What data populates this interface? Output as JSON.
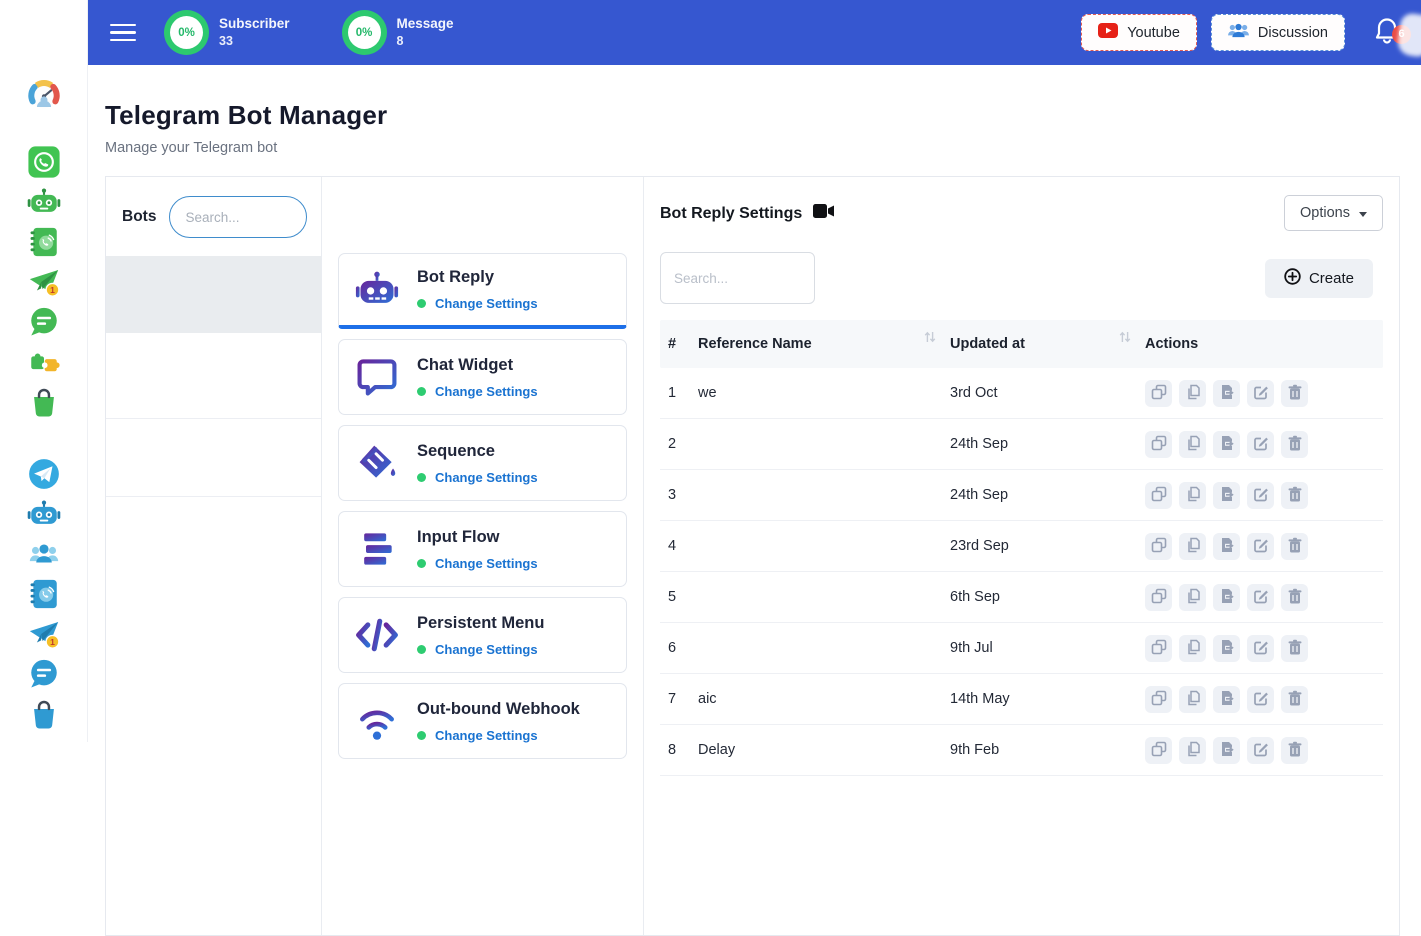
{
  "colors": {
    "header_bg": "#3657d0",
    "accent_blue": "#1a73d1",
    "active_underline": "#1d6fe8",
    "ring_green": "#2dc96f",
    "badge_red": "#ea4c46"
  },
  "app_sidebar": {
    "items": [
      {
        "name": "dashboard",
        "icon": "gauge-icon",
        "palette": "multi",
        "gap": "gap-after"
      },
      {
        "name": "whatsapp",
        "icon": "whatsapp-icon",
        "palette": "green"
      },
      {
        "name": "whatsapp-bot",
        "icon": "robot-icon",
        "palette": "green"
      },
      {
        "name": "whatsapp-contacts",
        "icon": "contacts-icon",
        "palette": "green"
      },
      {
        "name": "whatsapp-broadcast",
        "icon": "broadcast-icon",
        "palette": "green",
        "badge": "1"
      },
      {
        "name": "whatsapp-chat",
        "icon": "chat-icon",
        "palette": "green"
      },
      {
        "name": "integrations",
        "icon": "puzzle-icon",
        "palette": "green"
      },
      {
        "name": "whatsapp-shop",
        "icon": "bag-icon",
        "palette": "green",
        "gap": "gap-big-after"
      },
      {
        "name": "telegram",
        "icon": "telegram-icon",
        "palette": "blue"
      },
      {
        "name": "telegram-bot",
        "icon": "robot-icon",
        "palette": "blue"
      },
      {
        "name": "telegram-group",
        "icon": "users-icon",
        "palette": "blue"
      },
      {
        "name": "telegram-contacts",
        "icon": "contacts-icon",
        "palette": "blue"
      },
      {
        "name": "telegram-broadcast",
        "icon": "broadcast-icon",
        "palette": "blue",
        "badge": "1"
      },
      {
        "name": "telegram-chat",
        "icon": "chat-icon",
        "palette": "blue"
      },
      {
        "name": "telegram-shop",
        "icon": "bag-icon",
        "palette": "blue"
      }
    ]
  },
  "header": {
    "stats": [
      {
        "percent": "0%",
        "label": "Subscriber",
        "value": "33"
      },
      {
        "percent": "0%",
        "label": "Message",
        "value": "8"
      }
    ],
    "youtube_label": "Youtube",
    "discussion_label": "Discussion",
    "notification_count": "6"
  },
  "page": {
    "title": "Telegram Bot Manager",
    "subtitle": "Manage your Telegram bot"
  },
  "bots_panel": {
    "title": "Bots",
    "search_placeholder": "Search...",
    "rows": [
      {
        "name": "",
        "selected": true
      },
      {
        "name": "",
        "selected": false
      },
      {
        "name": "",
        "selected": false
      }
    ]
  },
  "settings_cards": {
    "items": [
      {
        "title": "Bot Reply",
        "status_label": "Change Settings",
        "icon": "bot-reply-icon",
        "active": true
      },
      {
        "title": "Chat Widget",
        "status_label": "Change Settings",
        "icon": "chat-widget-icon",
        "active": false
      },
      {
        "title": "Sequence",
        "status_label": "Change Settings",
        "icon": "sequence-icon",
        "active": false
      },
      {
        "title": "Input Flow",
        "status_label": "Change Settings",
        "icon": "input-flow-icon",
        "active": false
      },
      {
        "title": "Persistent Menu",
        "status_label": "Change Settings",
        "icon": "persistent-menu-icon",
        "active": false
      },
      {
        "title": "Out-bound Webhook",
        "status_label": "Change Settings",
        "icon": "webhook-icon",
        "active": false
      }
    ]
  },
  "reply_panel": {
    "title": "Bot Reply Settings",
    "options_label": "Options",
    "search_placeholder": "Search...",
    "create_label": "Create",
    "table": {
      "headers": [
        "#",
        "Reference Name",
        "Updated at",
        "Actions"
      ],
      "action_icons": [
        "clone-icon",
        "copy-icon",
        "export-icon",
        "edit-icon",
        "delete-icon"
      ],
      "rows": [
        {
          "num": "1",
          "name": "we",
          "date": "3rd Oct"
        },
        {
          "num": "2",
          "name": "",
          "date": "24th Sep"
        },
        {
          "num": "3",
          "name": "",
          "date": "24th Sep"
        },
        {
          "num": "4",
          "name": "",
          "date": "23rd Sep"
        },
        {
          "num": "5",
          "name": "",
          "date": "6th Sep"
        },
        {
          "num": "6",
          "name": "",
          "date": "9th Jul"
        },
        {
          "num": "7",
          "name": "aic",
          "date": "14th May"
        },
        {
          "num": "8",
          "name": "Delay",
          "date": "9th Feb"
        }
      ]
    }
  }
}
